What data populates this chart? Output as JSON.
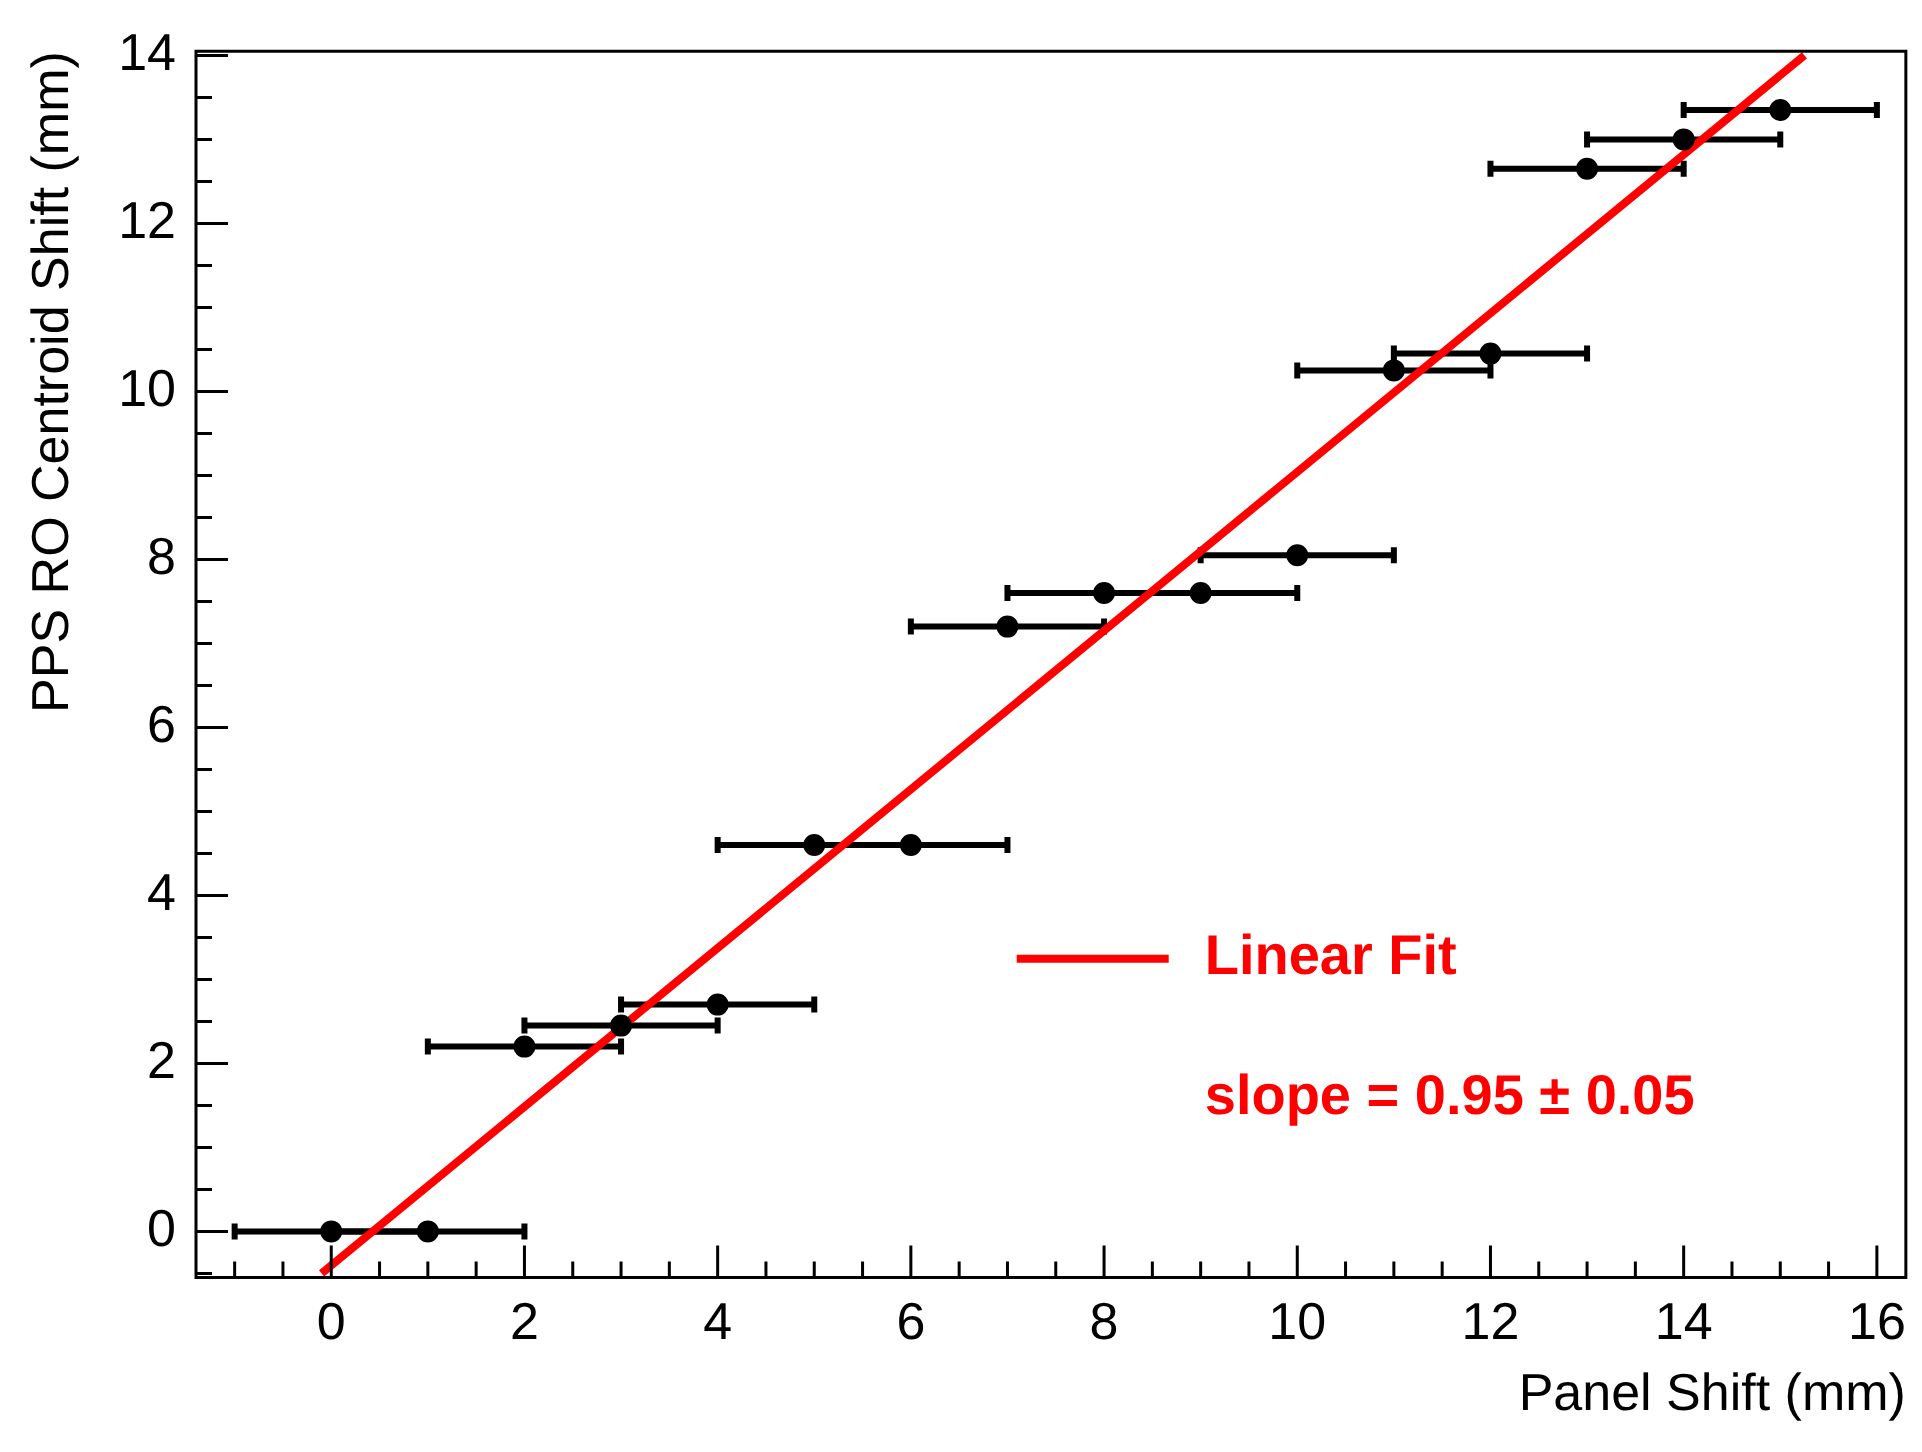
{
  "chart_data": {
    "type": "scatter",
    "xlabel": "Panel Shift (mm)",
    "ylabel": "PPS RO Centroid Shift (mm)",
    "xlim": [
      -1.4,
      16.3
    ],
    "ylim": [
      -0.55,
      14.05
    ],
    "xticks": [
      0,
      2,
      4,
      6,
      8,
      10,
      12,
      14,
      16
    ],
    "yticks": [
      0,
      2,
      4,
      6,
      8,
      10,
      12,
      14
    ],
    "grid": false,
    "legend": "bottom right",
    "annotations": [
      "slope = 0.95 ± 0.05"
    ],
    "series": [
      {
        "type": "scatter",
        "marker": "circle",
        "color": "#000000",
        "x": [
          0,
          1,
          2,
          3,
          4,
          5,
          6,
          7,
          8,
          9,
          10,
          11,
          12,
          13,
          14,
          15
        ],
        "values": [
          0,
          0,
          2.2,
          2.45,
          2.7,
          4.6,
          4.6,
          7.2,
          7.6,
          7.6,
          8.05,
          10.25,
          10.45,
          12.65,
          13.0,
          13.35
        ],
        "xerrors": [
          1,
          1,
          1,
          1,
          1,
          1,
          1,
          1,
          1,
          1,
          1,
          1,
          1,
          1,
          1,
          1
        ]
      },
      {
        "type": "line",
        "name": "Linear Fit",
        "color": "#ff0000",
        "line_style": "solid",
        "x": [
          -0.1,
          15.25
        ],
        "values": [
          -0.5,
          14.0
        ]
      }
    ]
  }
}
